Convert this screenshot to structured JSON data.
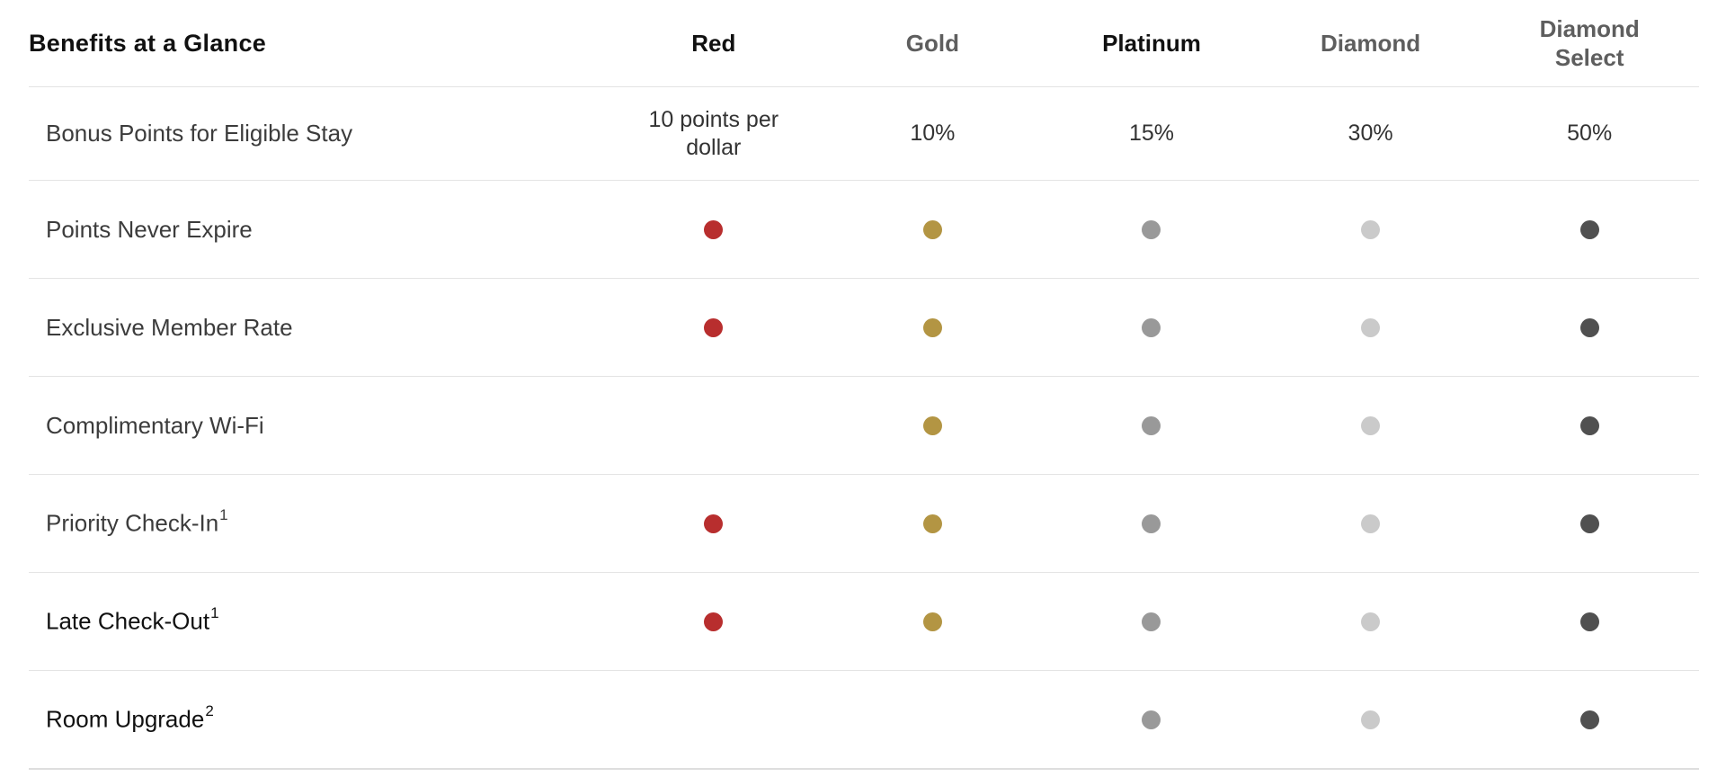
{
  "table": {
    "title": "Benefits at a Glance",
    "tiers": [
      {
        "key": "red",
        "label": "Red",
        "color": "#b82e2e"
      },
      {
        "key": "gold",
        "label": "Gold",
        "color": "#b39543"
      },
      {
        "key": "platinum",
        "label": "Platinum",
        "color": "#999999"
      },
      {
        "key": "diamond",
        "label": "Diamond",
        "color": "#cacaca"
      },
      {
        "key": "diamond_select",
        "label": "Diamond\nSelect",
        "color": "#505050"
      }
    ],
    "rows": [
      {
        "label": "Bonus Points for Eligible Stay",
        "sup": "",
        "values": [
          "10 points per dollar",
          "10%",
          "15%",
          "30%",
          "50%"
        ]
      },
      {
        "label": "Points Never Expire",
        "sup": "",
        "included": [
          true,
          true,
          true,
          true,
          true
        ]
      },
      {
        "label": "Exclusive Member Rate",
        "sup": "",
        "included": [
          true,
          true,
          true,
          true,
          true
        ]
      },
      {
        "label": "Complimentary Wi-Fi",
        "sup": "",
        "included": [
          false,
          true,
          true,
          true,
          true
        ]
      },
      {
        "label": "Priority Check-In",
        "sup": "1",
        "included": [
          true,
          true,
          true,
          true,
          true
        ]
      },
      {
        "label": "Late Check-Out",
        "sup": "1",
        "included": [
          true,
          true,
          true,
          true,
          true
        ]
      },
      {
        "label": "Room Upgrade",
        "sup": "2",
        "included": [
          false,
          false,
          true,
          true,
          true
        ]
      }
    ]
  }
}
